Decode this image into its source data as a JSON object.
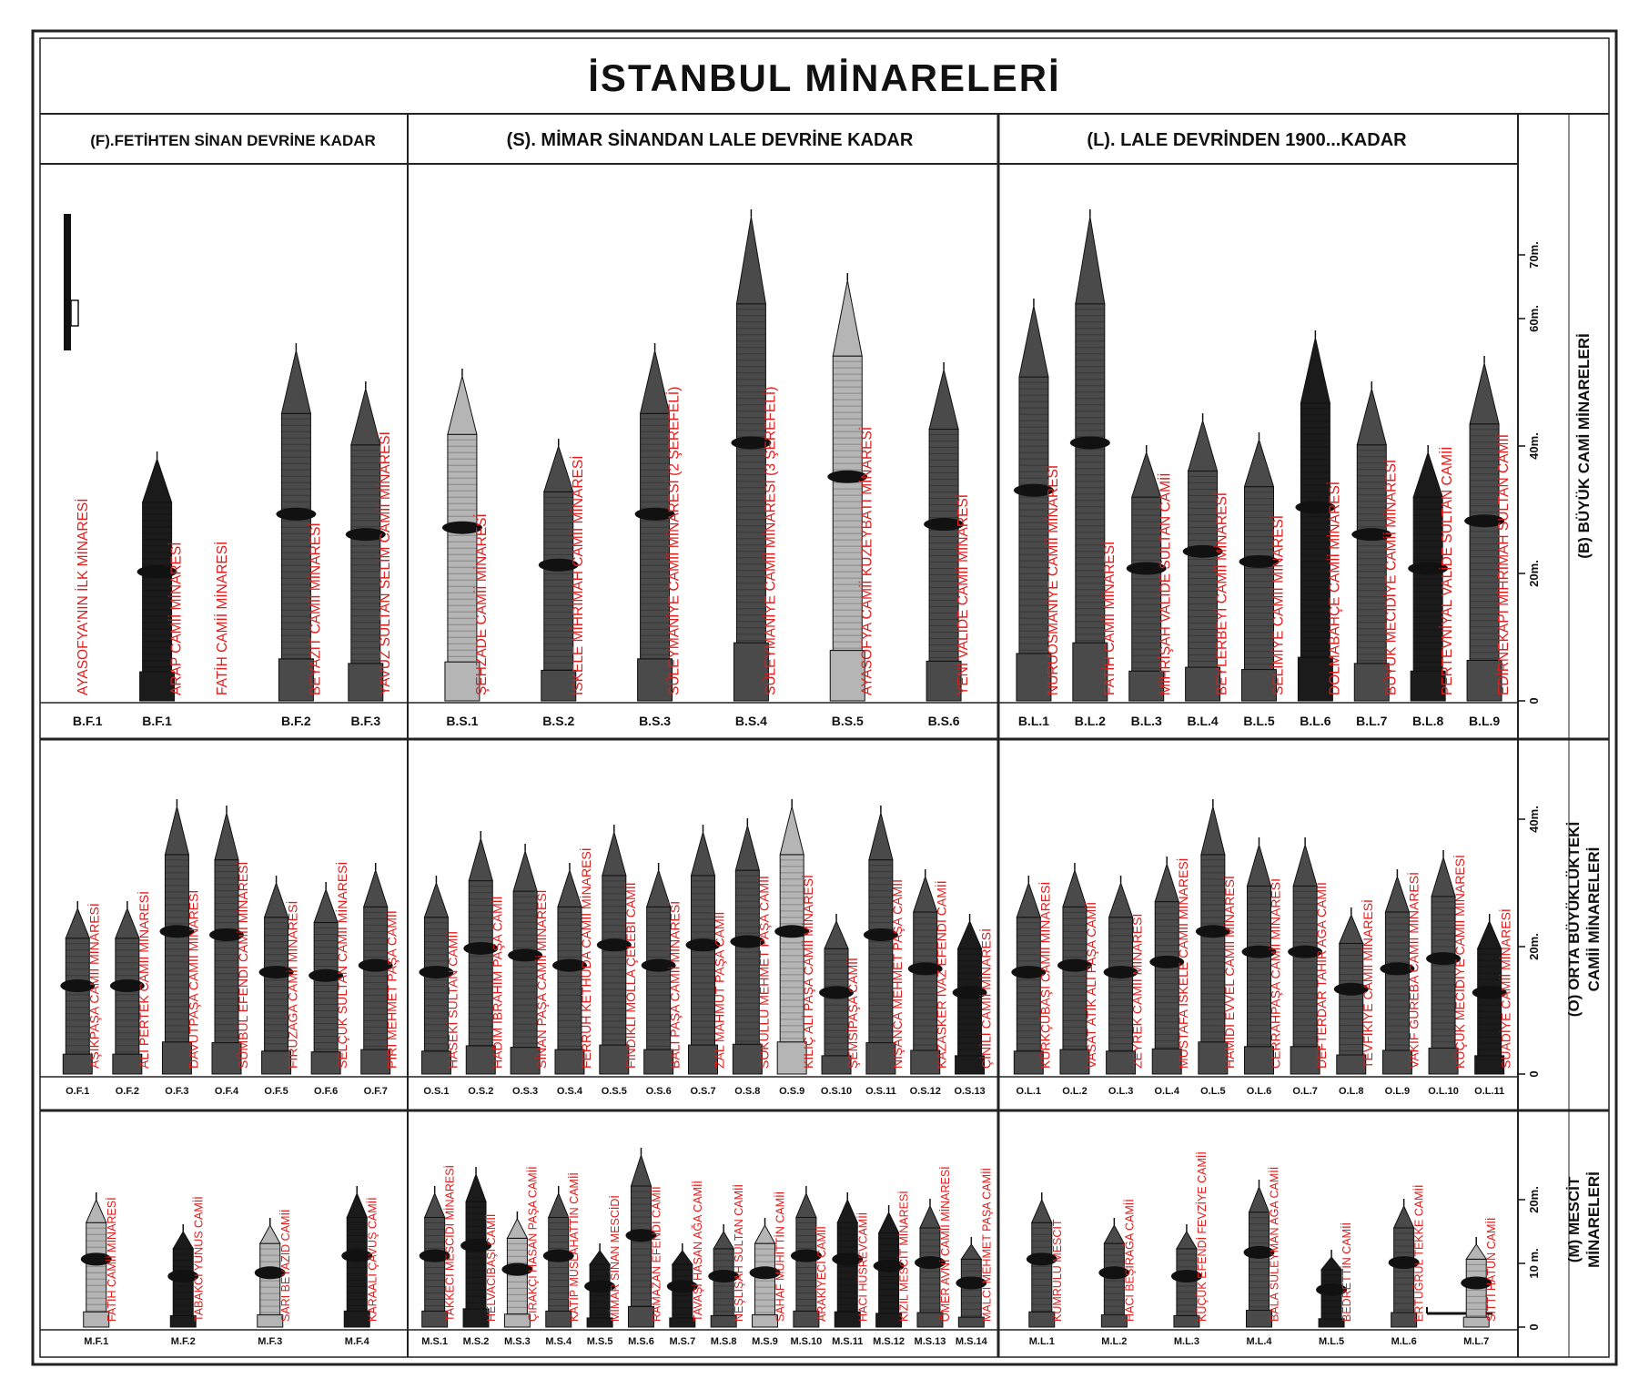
{
  "title": "İSTANBUL MİNARELERİ",
  "periods": [
    {
      "code": "F",
      "label": "(F).FETİHTEN SİNAN DEVRİNE KADAR"
    },
    {
      "code": "S",
      "label": "(S). MİMAR SİNANDAN LALE DEVRİNE KADAR"
    },
    {
      "code": "L",
      "label": "(L). LALE DEVRİNDEN 1900...KADAR"
    }
  ],
  "rows": [
    {
      "key": "B",
      "label": "(B) BÜYÜK CAMİ MİNARELERİ",
      "label_lines": [
        "(B) BÜYÜK CAMİ MİNARELERİ"
      ],
      "scale_ticks": [
        {
          "v": 0,
          "t": "0"
        },
        {
          "v": 20,
          "t": "20m."
        },
        {
          "v": 40,
          "t": "40m."
        },
        {
          "v": 60,
          "t": "60m."
        },
        {
          "v": 70,
          "t": "70m."
        }
      ]
    },
    {
      "key": "O",
      "label": "(O) ORTA BÜYÜKLÜKTEKİ CAMİİ MİNARELERİ",
      "label_lines": [
        "(O) ORTA BÜYÜKLÜKTEKİ",
        "CAMİİ MİNARELERİ"
      ],
      "scale_ticks": [
        {
          "v": 0,
          "t": "0"
        },
        {
          "v": 20,
          "t": "20m."
        },
        {
          "v": 40,
          "t": "40m."
        }
      ]
    },
    {
      "key": "M",
      "label": "(M) MESCİT MİNARELERİ",
      "label_lines": [
        "(M) MESCİT",
        "MİNARELERİ"
      ],
      "scale_ticks": [
        {
          "v": 0,
          "t": "0"
        },
        {
          "v": 10,
          "t": "10 m."
        },
        {
          "v": 20,
          "t": "20m."
        }
      ]
    }
  ],
  "minarets": {
    "B": [
      {
        "code": "B.F.1",
        "name": "AYASOFYA'NIN İLK MİNARESİ",
        "h": 0,
        "style": "none"
      },
      {
        "code": "B.F.1",
        "name": "ARAP CAMİİ MİNARESİ",
        "h": 38,
        "style": "dark"
      },
      {
        "code": "",
        "name": "FATİH CAMİİ MİNARESİ",
        "h": 0,
        "style": "none"
      },
      {
        "code": "B.F.2",
        "name": "BEYAZIT CAMİİ MİNARESİ",
        "h": 55,
        "style": "mid"
      },
      {
        "code": "B.F.3",
        "name": "YAVUZ SULTAN SELİM CAMİİ MİNARESİ",
        "h": 49,
        "style": "mid"
      },
      {
        "code": "B.S.1",
        "name": "ŞEHZADE CAMİİ MİNARESİ",
        "h": 51,
        "style": "light"
      },
      {
        "code": "B.S.2",
        "name": "İSKELE MİHRİMAH CAMİİ MİNARESİ",
        "h": 40,
        "style": "mid"
      },
      {
        "code": "B.S.3",
        "name": "SÜLEYMANİYE CAMİİ MİNARESİ (2 ŞEREFELİ)",
        "h": 55,
        "style": "mid"
      },
      {
        "code": "B.S.4",
        "name": "SÜLEYMANİYE CAMİİ MİNARESİ (3 ŞEREFELİ)",
        "h": 76,
        "style": "mid"
      },
      {
        "code": "B.S.5",
        "name": "AYASOFYA CAMİİ KUZEYBATI MİNARESİ",
        "h": 66,
        "style": "light"
      },
      {
        "code": "B.S.6",
        "name": "YENİ VALİDE CAMİİ MİNARESİ",
        "h": 52,
        "style": "mid"
      },
      {
        "code": "B.L.1",
        "name": "NURUOSMANİYE CAMİİ MİNARESİ",
        "h": 62,
        "style": "mid"
      },
      {
        "code": "B.L.2",
        "name": "FATİH CAMİİ MİNARESİ",
        "h": 76,
        "style": "mid"
      },
      {
        "code": "B.L.3",
        "name": "MİHRİŞAH VALİDE SULTAN CAMİİ",
        "h": 39,
        "style": "mid"
      },
      {
        "code": "B.L.4",
        "name": "BEYLERBEYİ CAMİİ MİNARESİ",
        "h": 44,
        "style": "mid"
      },
      {
        "code": "B.L.5",
        "name": "SELİMİYE CAMİİ MİNARESİ",
        "h": 41,
        "style": "mid"
      },
      {
        "code": "B.L.6",
        "name": "DOLMABAHÇE CAMİİ MİNARESİ",
        "h": 57,
        "style": "dark"
      },
      {
        "code": "B.L.7",
        "name": "BÜYÜK MECİDİYE CAMİİ MİNARESİ",
        "h": 49,
        "style": "mid"
      },
      {
        "code": "B.L.8",
        "name": "PERTEVNİYAL VALİDE SULTAN CAMİİ",
        "h": 39,
        "style": "dark"
      },
      {
        "code": "B.L.9",
        "name": "EDİRNEKAPI MİHRİMAH SULTAN CAMİİ",
        "h": 53,
        "style": "mid"
      }
    ],
    "O": [
      {
        "code": "O.F.1",
        "name": "AŞIKPAŞA CAMİİ MİNARESİ",
        "h": 26,
        "style": "mid"
      },
      {
        "code": "O.F.2",
        "name": "ALİ PERTEK CAMİİ MİNARESİ",
        "h": 26,
        "style": "mid"
      },
      {
        "code": "O.F.3",
        "name": "DAVUTPAŞA CAMİİ MİNARESİ",
        "h": 42,
        "style": "mid"
      },
      {
        "code": "O.F.4",
        "name": "SÜMBÜL EFENDİ CAMİİ MİNARESİ",
        "h": 41,
        "style": "mid"
      },
      {
        "code": "O.F.5",
        "name": "FİRUZAĞA CAMİİ MİNARESİ",
        "h": 30,
        "style": "mid"
      },
      {
        "code": "O.F.6",
        "name": "SELÇUK SULTAN CAMİİ MİNARESİ",
        "h": 29,
        "style": "mid"
      },
      {
        "code": "O.F.7",
        "name": "PİRİ MEHMET PAŞA CAMİİ",
        "h": 32,
        "style": "mid"
      },
      {
        "code": "O.S.1",
        "name": "HASEKİ SULTAN CAMİİ",
        "h": 30,
        "style": "mid"
      },
      {
        "code": "O.S.2",
        "name": "HADIM İBRAHİM PAŞA CAMİİ",
        "h": 37,
        "style": "mid"
      },
      {
        "code": "O.S.3",
        "name": "SİNAN PAŞA CAMİİ MİNARESİ",
        "h": 35,
        "style": "mid"
      },
      {
        "code": "O.S.4",
        "name": "FERRUH KETHÜDA CAMİİ MİNARESİ",
        "h": 32,
        "style": "mid"
      },
      {
        "code": "O.S.5",
        "name": "FINDIKLI MOLLA ÇELEBİ CAMİİ",
        "h": 38,
        "style": "mid"
      },
      {
        "code": "O.S.6",
        "name": "BALİ PAŞA CAMİİ MİNARESİ",
        "h": 32,
        "style": "mid"
      },
      {
        "code": "O.S.7",
        "name": "ZAL MAHMUT PAŞA CAMİİ",
        "h": 38,
        "style": "mid"
      },
      {
        "code": "O.S.8",
        "name": "SOKULLU MEHMET PAŞA CAMİİ",
        "h": 39,
        "style": "mid"
      },
      {
        "code": "O.S.9",
        "name": "KILIÇ ALİ PAŞA CAMİİ MİNARESİ",
        "h": 42,
        "style": "light"
      },
      {
        "code": "O.S.10",
        "name": "ŞEMSİPAŞA CAMİİ",
        "h": 24,
        "style": "mid"
      },
      {
        "code": "O.S.11",
        "name": "NİŞANCA MEHMET PAŞA CAMİİ",
        "h": 41,
        "style": "mid"
      },
      {
        "code": "O.S.12",
        "name": "KAZASKER İVAZ EFENDİ CAMİİ",
        "h": 31,
        "style": "mid"
      },
      {
        "code": "O.S.13",
        "name": "ÇİNİLİ CAMİİ MİNARESİ",
        "h": 24,
        "style": "dark"
      },
      {
        "code": "O.L.1",
        "name": "KÜRKÇÜBAŞI CAMİİ MİNARESİ",
        "h": 30,
        "style": "mid"
      },
      {
        "code": "O.L.2",
        "name": "VASAT ATİK ALİ PAŞA CAMİİ",
        "h": 32,
        "style": "mid"
      },
      {
        "code": "O.L.3",
        "name": "ZEYREK CAMİİ MİNARESİ",
        "h": 30,
        "style": "mid"
      },
      {
        "code": "O.L.4",
        "name": "MUSTAFA İSKELE CAMİİ MİNARESİ",
        "h": 33,
        "style": "mid"
      },
      {
        "code": "O.L.5",
        "name": "HAMİDİ EVVEL CAMİİ MİNARESİ",
        "h": 42,
        "style": "mid"
      },
      {
        "code": "O.L.6",
        "name": "CERRAHPAŞA CAMİİ MİNARESİ",
        "h": 36,
        "style": "mid"
      },
      {
        "code": "O.L.7",
        "name": "DEFTERDAR TAHİR AĞA CAMİİ",
        "h": 36,
        "style": "mid"
      },
      {
        "code": "O.L.8",
        "name": "TEVFİKİYE CAMİİ MİNARESİ",
        "h": 25,
        "style": "mid"
      },
      {
        "code": "O.L.9",
        "name": "VAKIF GUREBA CAMİİ MİNARESİ",
        "h": 31,
        "style": "mid"
      },
      {
        "code": "O.L.10",
        "name": "KÜÇÜK MECİDİYE CAMİİ MİNARESİ",
        "h": 34,
        "style": "mid"
      },
      {
        "code": "O.L.11",
        "name": "SUADİYE CAMİİ MİNARESİ",
        "h": 24,
        "style": "dark"
      }
    ],
    "M": [
      {
        "code": "M.F.1",
        "name": "FATİH CAMİİ MİNARESİ",
        "h": 20,
        "style": "light"
      },
      {
        "code": "M.F.2",
        "name": "TABAKCI YUNUS CAMİİ",
        "h": 15,
        "style": "dark"
      },
      {
        "code": "M.F.3",
        "name": "SARI BEYAZID CAMİİ",
        "h": 16,
        "style": "light"
      },
      {
        "code": "M.F.4",
        "name": "KARAALİ ÇAVUŞ CAMİİ",
        "h": 21,
        "style": "dark"
      },
      {
        "code": "M.S.1",
        "name": "TAKKECİ MESCİDİ MİNARESİ",
        "h": 21,
        "style": "mid"
      },
      {
        "code": "M.S.2",
        "name": "HELVACIBAŞI CAMİİ",
        "h": 24,
        "style": "dark"
      },
      {
        "code": "M.S.3",
        "name": "ÇIRAKÇI HASAN PAŞA CAMİİ",
        "h": 17,
        "style": "light"
      },
      {
        "code": "M.S.4",
        "name": "KATİP MUSLAHATTİN CAMİİ",
        "h": 21,
        "style": "mid"
      },
      {
        "code": "M.S.5",
        "name": "MİMAR SİNAN MESCİDİ",
        "h": 12,
        "style": "dark"
      },
      {
        "code": "M.S.6",
        "name": "RAMAZAN EFENDİ CAMİİ",
        "h": 27,
        "style": "mid"
      },
      {
        "code": "M.S.7",
        "name": "TAVAŞİ HASAN AĞA CAMİİ",
        "h": 12,
        "style": "dark"
      },
      {
        "code": "M.S.8",
        "name": "NEŞLİŞAH SULTAN CAMİİ",
        "h": 15,
        "style": "mid"
      },
      {
        "code": "M.S.9",
        "name": "SAHAF MUHİTTİN CAMİİ",
        "h": 16,
        "style": "light"
      },
      {
        "code": "M.S.10",
        "name": "ARAKİYECİ CAMİİ",
        "h": 21,
        "style": "mid"
      },
      {
        "code": "M.S.11",
        "name": "HACI HÜSREVCAMİİ",
        "h": 20,
        "style": "dark"
      },
      {
        "code": "M.S.12",
        "name": "KIZIL MESCİT MİNARESİ",
        "h": 18,
        "style": "dark"
      },
      {
        "code": "M.S.13",
        "name": "ÖMER AVNİ CAMİİ MİNARESİ",
        "h": 19,
        "style": "mid"
      },
      {
        "code": "M.S.14",
        "name": "MALCI MEHMET PAŞA CAMİİ",
        "h": 13,
        "style": "mid"
      },
      {
        "code": "M.L.1",
        "name": "KUMRULU MESCİT",
        "h": 20,
        "style": "mid"
      },
      {
        "code": "M.L.2",
        "name": "HACI BEŞİRAĞA CAMİİ",
        "h": 16,
        "style": "mid"
      },
      {
        "code": "M.L.3",
        "name": "KÜÇÜK EFENDİ FEVZİYE CAMİİ",
        "h": 15,
        "style": "mid"
      },
      {
        "code": "M.L.4",
        "name": "BALA SÜLEYMAN AĞA CAMİİ",
        "h": 22,
        "style": "mid"
      },
      {
        "code": "M.L.5",
        "name": "BEDRETTİN CAMİİ",
        "h": 11,
        "style": "dark"
      },
      {
        "code": "M.L.6",
        "name": "ERTUĞRUL TEKKE CAMİİ",
        "h": 19,
        "style": "mid"
      },
      {
        "code": "M.L.7",
        "name": "SİTTİ HATUN CAMİİ",
        "h": 13,
        "style": "light"
      }
    ]
  },
  "colors": {
    "name": "#e31b1b",
    "ink": "#111111",
    "border": "#222222",
    "dark": "#1b1b1b",
    "mid": "#4a4a4a",
    "light": "#b5b5b5"
  }
}
